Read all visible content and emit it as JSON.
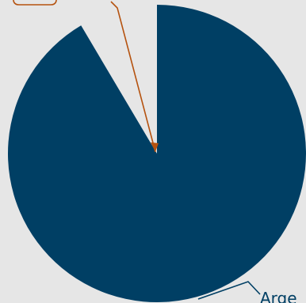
{
  "chart_data": {
    "type": "pie",
    "title": "",
    "series": [
      {
        "name": "",
        "values": [
          91.5,
          8.5
        ]
      }
    ],
    "categories": [
      "Arge",
      ""
    ],
    "slices": [
      {
        "label": "Arge",
        "value": 91.5,
        "color": "#003f64",
        "label_color": "#003f64"
      },
      {
        "label": "",
        "value": 8.5,
        "color": "#e6e6e6",
        "label_color": "#b5520f"
      }
    ],
    "start_angle_deg": 0,
    "direction": "clockwise"
  },
  "colors": {
    "background": "#e6e6e6",
    "main_slice": "#003f64",
    "leader_secondary": "#b5520f"
  }
}
